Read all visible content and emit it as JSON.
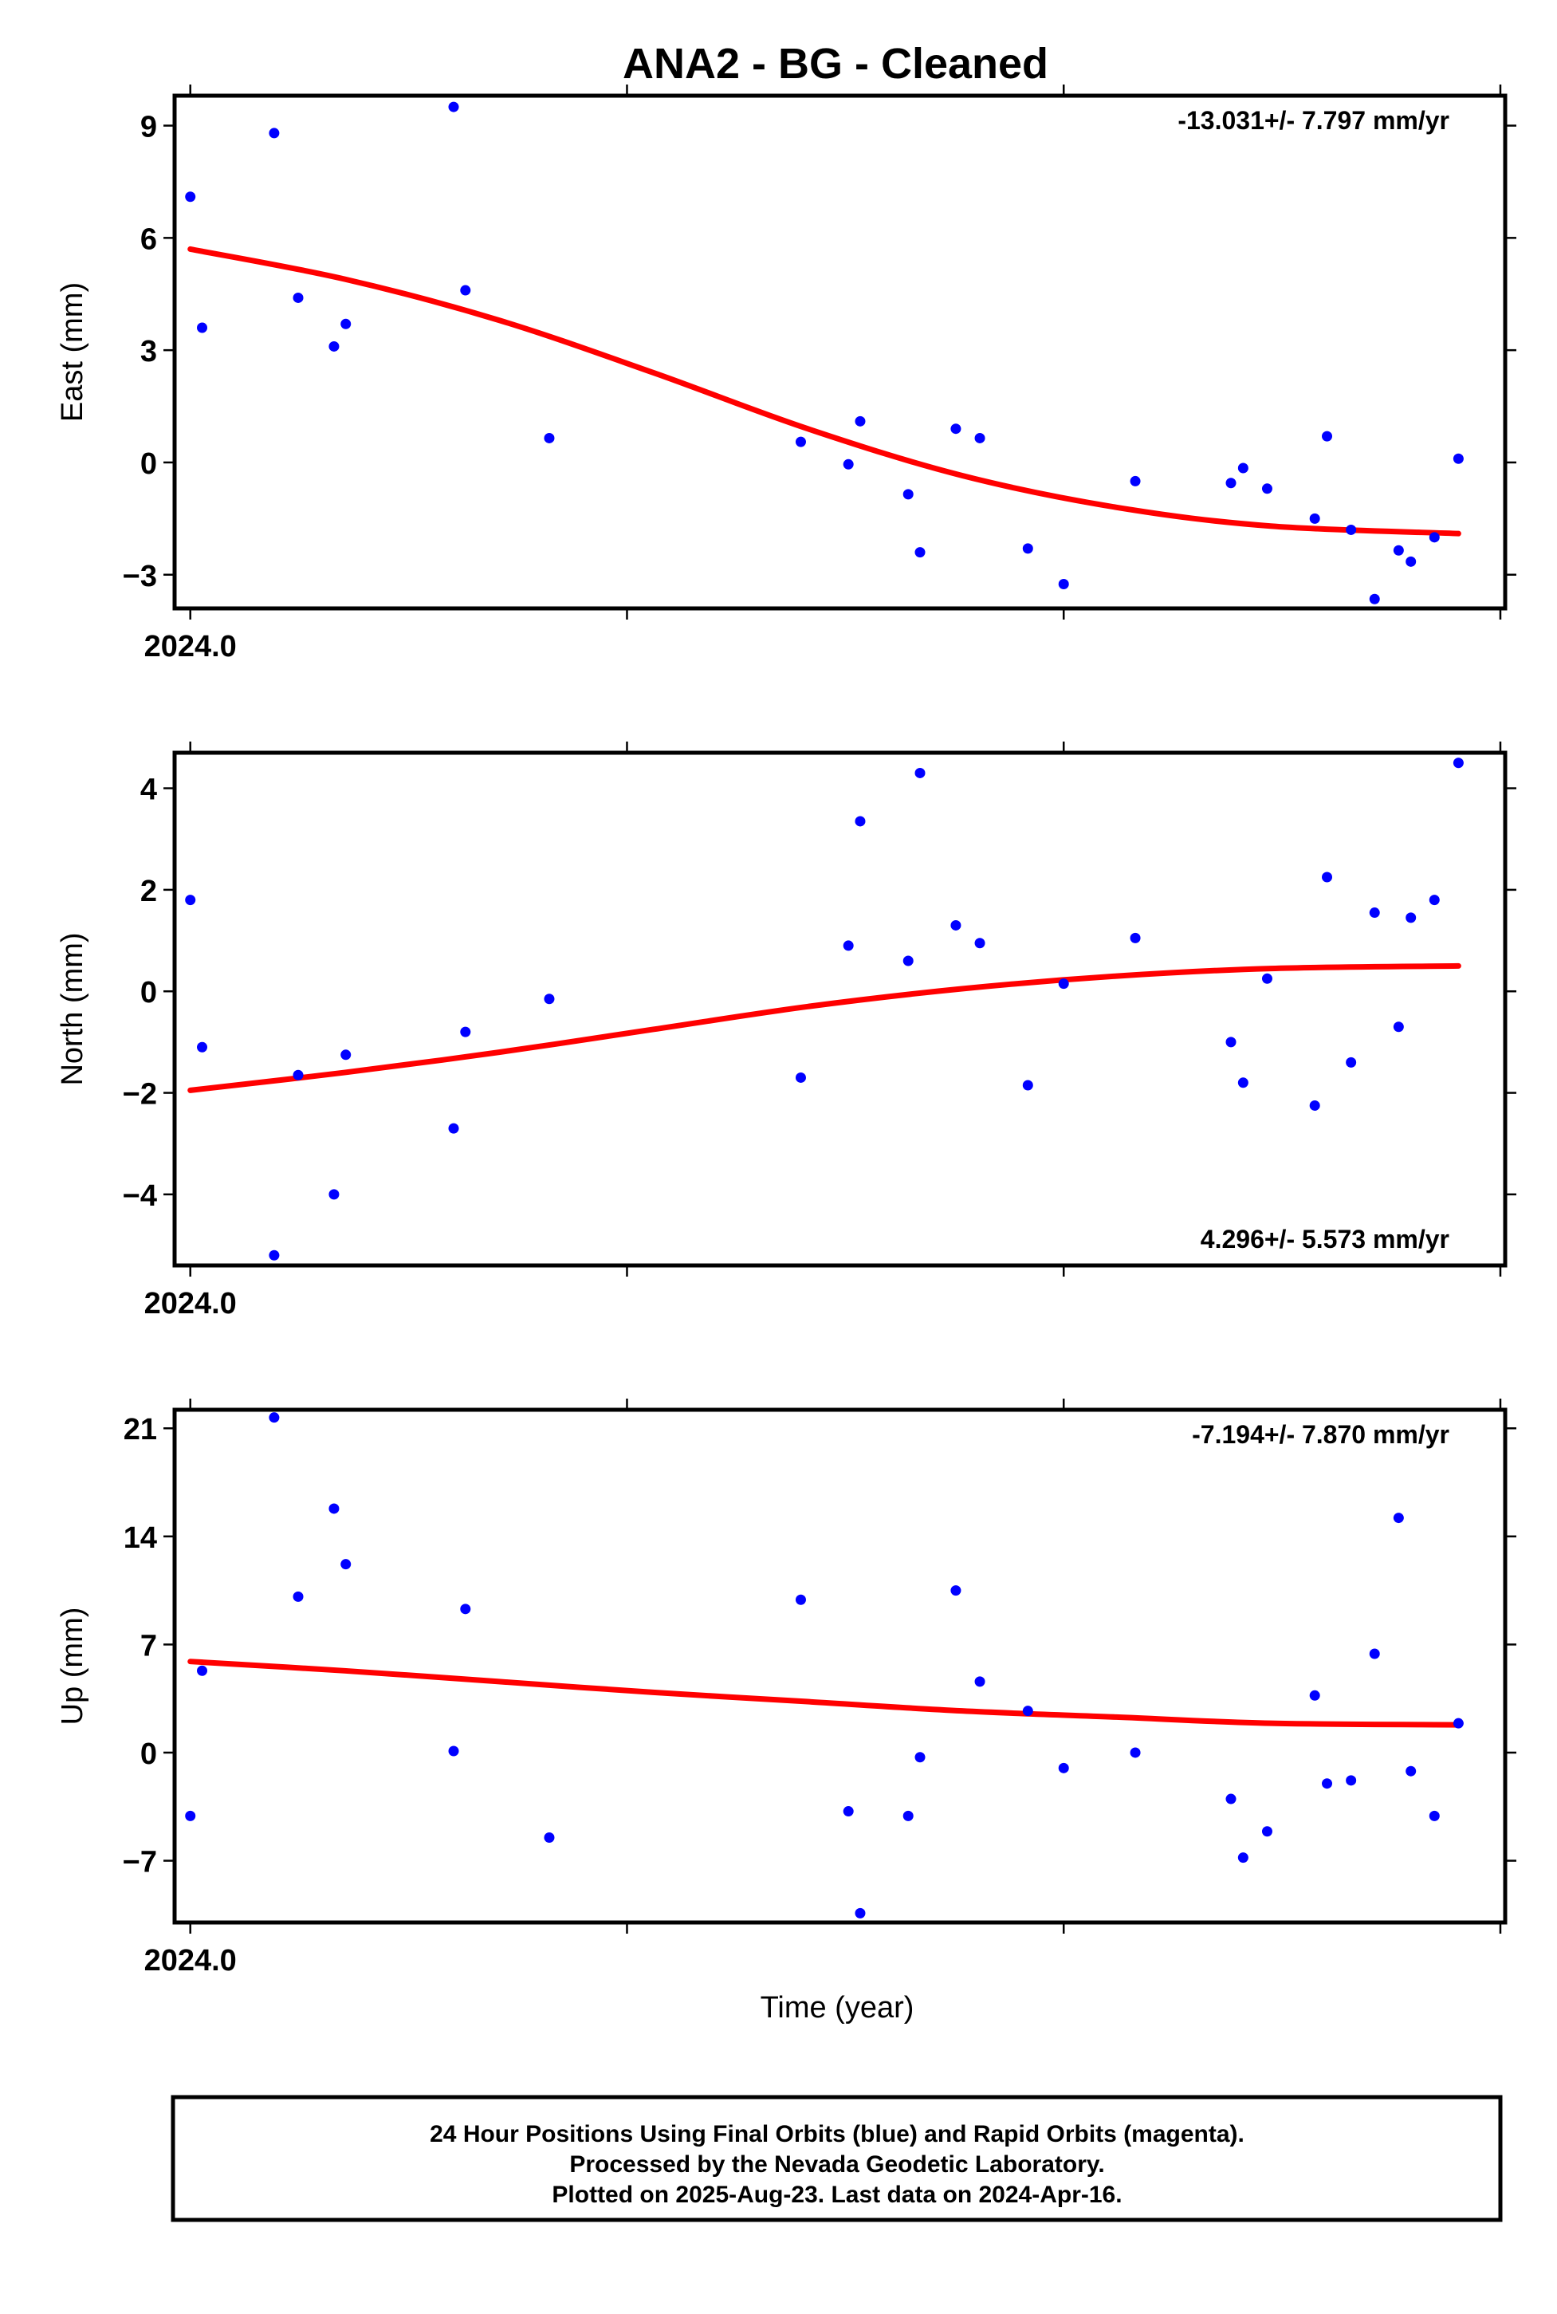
{
  "page": {
    "title": "ANA2  - BG - Cleaned",
    "xlabel": "Time (year)"
  },
  "footer": {
    "line1": "24 Hour Positions Using Final Orbits (blue) and Rapid Orbits (magenta).",
    "line2": "Processed by the Nevada Geodetic Laboratory.",
    "line3": "Plotted on 2025-Aug-23. Last data on 2024-Apr-16."
  },
  "colors": {
    "points": "#0000ff",
    "fit": "#ff0000",
    "frame": "#000000"
  },
  "chart_data": [
    {
      "type": "scatter",
      "ylabel": "East (mm)",
      "rate_text": "-13.031+/- 7.797 mm/yr",
      "rate_position": "top-right",
      "xlim": [
        2023.9964,
        2024.3011
      ],
      "ylim": [
        -3.9,
        9.8
      ],
      "yticks": [
        9,
        6,
        3,
        0,
        -3
      ],
      "ytick_labels": [
        "9",
        "6",
        "3",
        "0",
        "−3"
      ],
      "xticks": [
        2024.0,
        2024.1,
        2024.2,
        2024.3
      ],
      "xtick_labels": [
        "2024.0",
        "",
        "",
        ""
      ],
      "points_x": [
        2024.0,
        2024.0027,
        2024.0192,
        2024.0247,
        2024.0329,
        2024.0356,
        2024.0603,
        2024.063,
        2024.0822,
        2024.1398,
        2024.1507,
        2024.1534,
        2024.1644,
        2024.1671,
        2024.1753,
        2024.1808,
        2024.1918,
        2024.2,
        2024.2164,
        2024.2383,
        2024.2411,
        2024.2466,
        2024.2575,
        2024.2603,
        2024.2658,
        2024.2712,
        2024.2767,
        2024.2795,
        2024.2849,
        2024.2904
      ],
      "points_y": [
        7.1,
        3.6,
        8.8,
        4.4,
        3.1,
        3.7,
        9.5,
        4.6,
        0.65,
        0.55,
        -0.05,
        1.1,
        -0.85,
        -2.4,
        0.9,
        0.65,
        -2.3,
        -3.25,
        -0.5,
        -0.55,
        -0.15,
        -0.7,
        -1.5,
        0.7,
        -1.8,
        -3.65,
        -2.35,
        -2.65,
        -2.0,
        0.1
      ],
      "fit_x": [
        2024.0,
        2024.0353,
        2024.0707,
        2024.106,
        2024.1414,
        2024.1767,
        2024.2121,
        2024.2474,
        2024.2904
      ],
      "fit_y": [
        5.7,
        4.9,
        3.8,
        2.4,
        0.9,
        -0.35,
        -1.2,
        -1.7,
        -1.9
      ]
    },
    {
      "type": "scatter",
      "ylabel": "North (mm)",
      "rate_text": "4.296+/- 5.573 mm/yr",
      "rate_position": "bottom-right",
      "xlim": [
        2023.9964,
        2024.3011
      ],
      "ylim": [
        -5.4,
        4.7
      ],
      "yticks": [
        4,
        2,
        0,
        -2,
        -4
      ],
      "ytick_labels": [
        "4",
        "2",
        "0",
        "−2",
        "−4"
      ],
      "xticks": [
        2024.0,
        2024.1,
        2024.2,
        2024.3
      ],
      "xtick_labels": [
        "2024.0",
        "",
        "",
        ""
      ],
      "points_x": [
        2024.0,
        2024.0027,
        2024.0192,
        2024.0247,
        2024.0329,
        2024.0356,
        2024.0603,
        2024.063,
        2024.0822,
        2024.1398,
        2024.1507,
        2024.1534,
        2024.1644,
        2024.1671,
        2024.1753,
        2024.1808,
        2024.1918,
        2024.2,
        2024.2164,
        2024.2383,
        2024.2411,
        2024.2466,
        2024.2575,
        2024.2603,
        2024.2658,
        2024.2712,
        2024.2767,
        2024.2795,
        2024.2849,
        2024.2904
      ],
      "points_y": [
        1.8,
        -1.1,
        -5.2,
        -1.65,
        -4.0,
        -1.25,
        -2.7,
        -0.8,
        -0.15,
        -1.7,
        0.9,
        3.35,
        0.6,
        4.3,
        1.3,
        0.95,
        -1.85,
        0.15,
        1.05,
        -1.0,
        -1.8,
        0.25,
        -2.25,
        2.25,
        -1.4,
        1.55,
        -0.7,
        1.45,
        1.8,
        4.5
      ],
      "fit_x": [
        2024.0,
        2024.0353,
        2024.0707,
        2024.106,
        2024.1414,
        2024.1767,
        2024.2121,
        2024.2474,
        2024.2904
      ],
      "fit_y": [
        -1.95,
        -1.6,
        -1.2,
        -0.75,
        -0.3,
        0.05,
        0.3,
        0.45,
        0.5
      ]
    },
    {
      "type": "scatter",
      "ylabel": "Up (mm)",
      "rate_text": "-7.194+/- 7.870 mm/yr",
      "rate_position": "top-right",
      "xlim": [
        2023.9964,
        2024.3011
      ],
      "ylim": [
        -11.0,
        22.2
      ],
      "yticks": [
        21,
        14,
        7,
        0,
        -7
      ],
      "ytick_labels": [
        "21",
        "14",
        "7",
        "0",
        "−7"
      ],
      "xticks": [
        2024.0,
        2024.1,
        2024.2,
        2024.3
      ],
      "xtick_labels": [
        "2024.0",
        "",
        "",
        ""
      ],
      "points_x": [
        2024.0,
        2024.0027,
        2024.0192,
        2024.0247,
        2024.0329,
        2024.0356,
        2024.0603,
        2024.063,
        2024.0822,
        2024.1398,
        2024.1507,
        2024.1534,
        2024.1644,
        2024.1671,
        2024.1753,
        2024.1808,
        2024.1918,
        2024.2,
        2024.2164,
        2024.2383,
        2024.2411,
        2024.2466,
        2024.2575,
        2024.2603,
        2024.2658,
        2024.2712,
        2024.2767,
        2024.2795,
        2024.2849,
        2024.2904
      ],
      "points_y": [
        -4.1,
        5.3,
        21.7,
        10.1,
        15.8,
        12.2,
        0.1,
        9.3,
        -5.5,
        9.9,
        -3.8,
        -10.4,
        -4.1,
        -0.3,
        10.5,
        4.6,
        2.7,
        -1.0,
        0.0,
        -3.0,
        -6.8,
        -5.1,
        3.7,
        -2.0,
        -1.8,
        6.4,
        15.2,
        -1.2,
        -4.1,
        1.9
      ],
      "fit_x": [
        2024.0,
        2024.0353,
        2024.0707,
        2024.106,
        2024.1414,
        2024.1767,
        2024.2121,
        2024.2474,
        2024.2904
      ],
      "fit_y": [
        5.9,
        5.3,
        4.6,
        3.9,
        3.3,
        2.7,
        2.3,
        1.9,
        1.8
      ]
    }
  ]
}
